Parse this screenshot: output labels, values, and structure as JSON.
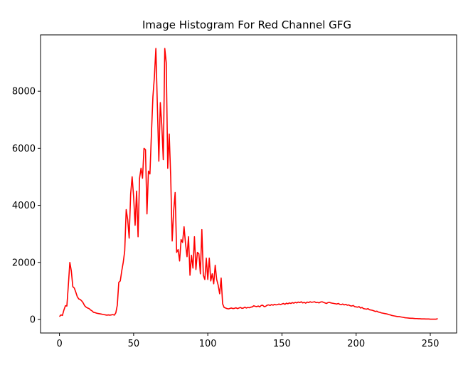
{
  "chart_data": {
    "type": "line",
    "title": "Image Histogram For Red Channel GFG",
    "xlabel": "",
    "ylabel": "",
    "xlim": [
      -12.75,
      267.75
    ],
    "ylim": [
      -475,
      9975
    ],
    "xticks": [
      0,
      50,
      100,
      150,
      200,
      250
    ],
    "yticks": [
      0,
      2000,
      4000,
      6000,
      8000
    ],
    "grid": false,
    "legend": "none",
    "series": [
      {
        "color": "#ff0000",
        "points": [
          [
            0,
            100
          ],
          [
            1,
            160
          ],
          [
            2,
            140
          ],
          [
            3,
            330
          ],
          [
            4,
            480
          ],
          [
            5,
            470
          ],
          [
            6,
            1200
          ],
          [
            7,
            2000
          ],
          [
            8,
            1700
          ],
          [
            9,
            1150
          ],
          [
            10,
            1100
          ],
          [
            11,
            960
          ],
          [
            12,
            800
          ],
          [
            13,
            720
          ],
          [
            14,
            700
          ],
          [
            15,
            650
          ],
          [
            16,
            580
          ],
          [
            17,
            480
          ],
          [
            18,
            430
          ],
          [
            19,
            400
          ],
          [
            20,
            380
          ],
          [
            21,
            330
          ],
          [
            22,
            300
          ],
          [
            23,
            250
          ],
          [
            24,
            240
          ],
          [
            25,
            220
          ],
          [
            26,
            210
          ],
          [
            27,
            200
          ],
          [
            28,
            190
          ],
          [
            29,
            180
          ],
          [
            30,
            170
          ],
          [
            31,
            160
          ],
          [
            32,
            150
          ],
          [
            33,
            160
          ],
          [
            34,
            150
          ],
          [
            35,
            160
          ],
          [
            36,
            170
          ],
          [
            37,
            150
          ],
          [
            38,
            230
          ],
          [
            39,
            500
          ],
          [
            40,
            1300
          ],
          [
            41,
            1350
          ],
          [
            42,
            1700
          ],
          [
            43,
            2000
          ],
          [
            44,
            2400
          ],
          [
            45,
            3850
          ],
          [
            46,
            3500
          ],
          [
            47,
            2850
          ],
          [
            48,
            4400
          ],
          [
            49,
            5000
          ],
          [
            50,
            4300
          ],
          [
            51,
            3300
          ],
          [
            52,
            4500
          ],
          [
            53,
            2900
          ],
          [
            54,
            4950
          ],
          [
            55,
            5300
          ],
          [
            56,
            4950
          ],
          [
            57,
            6000
          ],
          [
            58,
            5950
          ],
          [
            59,
            3700
          ],
          [
            60,
            5200
          ],
          [
            61,
            5100
          ],
          [
            62,
            6500
          ],
          [
            63,
            7800
          ],
          [
            64,
            8500
          ],
          [
            65,
            9500
          ],
          [
            66,
            7500
          ],
          [
            67,
            5550
          ],
          [
            68,
            7600
          ],
          [
            69,
            6800
          ],
          [
            70,
            5600
          ],
          [
            71,
            9500
          ],
          [
            72,
            9000
          ],
          [
            73,
            5300
          ],
          [
            74,
            6500
          ],
          [
            75,
            5000
          ],
          [
            76,
            2750
          ],
          [
            77,
            3800
          ],
          [
            78,
            4450
          ],
          [
            79,
            2350
          ],
          [
            80,
            2450
          ],
          [
            81,
            2050
          ],
          [
            82,
            2800
          ],
          [
            83,
            2700
          ],
          [
            84,
            3250
          ],
          [
            85,
            2650
          ],
          [
            86,
            2200
          ],
          [
            87,
            2900
          ],
          [
            88,
            1550
          ],
          [
            89,
            2250
          ],
          [
            90,
            1800
          ],
          [
            91,
            2900
          ],
          [
            92,
            1750
          ],
          [
            93,
            2350
          ],
          [
            94,
            2300
          ],
          [
            95,
            1600
          ],
          [
            96,
            3150
          ],
          [
            97,
            1550
          ],
          [
            98,
            1400
          ],
          [
            99,
            2150
          ],
          [
            100,
            1400
          ],
          [
            101,
            2150
          ],
          [
            102,
            1350
          ],
          [
            103,
            1600
          ],
          [
            104,
            1250
          ],
          [
            105,
            1900
          ],
          [
            106,
            1400
          ],
          [
            107,
            1200
          ],
          [
            108,
            900
          ],
          [
            109,
            1450
          ],
          [
            110,
            550
          ],
          [
            111,
            420
          ],
          [
            112,
            400
          ],
          [
            113,
            380
          ],
          [
            114,
            370
          ],
          [
            115,
            390
          ],
          [
            116,
            400
          ],
          [
            117,
            380
          ],
          [
            118,
            390
          ],
          [
            119,
            410
          ],
          [
            120,
            380
          ],
          [
            121,
            400
          ],
          [
            122,
            420
          ],
          [
            123,
            390
          ],
          [
            124,
            400
          ],
          [
            125,
            430
          ],
          [
            126,
            400
          ],
          [
            127,
            420
          ],
          [
            128,
            410
          ],
          [
            129,
            430
          ],
          [
            130,
            440
          ],
          [
            131,
            480
          ],
          [
            132,
            460
          ],
          [
            133,
            450
          ],
          [
            134,
            470
          ],
          [
            135,
            440
          ],
          [
            136,
            490
          ],
          [
            137,
            500
          ],
          [
            138,
            450
          ],
          [
            139,
            460
          ],
          [
            140,
            500
          ],
          [
            141,
            510
          ],
          [
            142,
            490
          ],
          [
            143,
            520
          ],
          [
            144,
            500
          ],
          [
            145,
            530
          ],
          [
            146,
            510
          ],
          [
            147,
            520
          ],
          [
            148,
            540
          ],
          [
            149,
            520
          ],
          [
            150,
            540
          ],
          [
            151,
            560
          ],
          [
            152,
            530
          ],
          [
            153,
            570
          ],
          [
            154,
            550
          ],
          [
            155,
            580
          ],
          [
            156,
            560
          ],
          [
            157,
            590
          ],
          [
            158,
            570
          ],
          [
            159,
            600
          ],
          [
            160,
            580
          ],
          [
            161,
            610
          ],
          [
            162,
            590
          ],
          [
            163,
            620
          ],
          [
            164,
            580
          ],
          [
            165,
            600
          ],
          [
            166,
            570
          ],
          [
            167,
            610
          ],
          [
            168,
            590
          ],
          [
            169,
            620
          ],
          [
            170,
            600
          ],
          [
            171,
            610
          ],
          [
            172,
            620
          ],
          [
            173,
            590
          ],
          [
            174,
            600
          ],
          [
            175,
            580
          ],
          [
            176,
            610
          ],
          [
            177,
            620
          ],
          [
            178,
            600
          ],
          [
            179,
            580
          ],
          [
            180,
            560
          ],
          [
            181,
            590
          ],
          [
            182,
            600
          ],
          [
            183,
            580
          ],
          [
            184,
            570
          ],
          [
            185,
            560
          ],
          [
            186,
            550
          ],
          [
            187,
            540
          ],
          [
            188,
            560
          ],
          [
            189,
            530
          ],
          [
            190,
            520
          ],
          [
            191,
            540
          ],
          [
            192,
            510
          ],
          [
            193,
            530
          ],
          [
            194,
            500
          ],
          [
            195,
            510
          ],
          [
            196,
            480
          ],
          [
            197,
            470
          ],
          [
            198,
            490
          ],
          [
            199,
            450
          ],
          [
            200,
            440
          ],
          [
            201,
            430
          ],
          [
            202,
            450
          ],
          [
            203,
            400
          ],
          [
            204,
            420
          ],
          [
            205,
            380
          ],
          [
            206,
            370
          ],
          [
            207,
            360
          ],
          [
            208,
            380
          ],
          [
            209,
            340
          ],
          [
            210,
            330
          ],
          [
            211,
            320
          ],
          [
            212,
            300
          ],
          [
            213,
            280
          ],
          [
            214,
            290
          ],
          [
            215,
            260
          ],
          [
            216,
            250
          ],
          [
            217,
            230
          ],
          [
            218,
            220
          ],
          [
            219,
            210
          ],
          [
            220,
            200
          ],
          [
            221,
            190
          ],
          [
            222,
            170
          ],
          [
            223,
            160
          ],
          [
            224,
            140
          ],
          [
            225,
            130
          ],
          [
            226,
            120
          ],
          [
            227,
            110
          ],
          [
            228,
            100
          ],
          [
            229,
            100
          ],
          [
            230,
            90
          ],
          [
            231,
            80
          ],
          [
            232,
            70
          ],
          [
            233,
            60
          ],
          [
            234,
            55
          ],
          [
            235,
            50
          ],
          [
            236,
            45
          ],
          [
            237,
            40
          ],
          [
            238,
            40
          ],
          [
            239,
            35
          ],
          [
            240,
            30
          ],
          [
            241,
            30
          ],
          [
            242,
            25
          ],
          [
            243,
            25
          ],
          [
            244,
            20
          ],
          [
            245,
            20
          ],
          [
            246,
            20
          ],
          [
            247,
            15
          ],
          [
            248,
            15
          ],
          [
            249,
            15
          ],
          [
            250,
            10
          ],
          [
            251,
            10
          ],
          [
            252,
            10
          ],
          [
            253,
            10
          ],
          [
            254,
            10
          ],
          [
            255,
            30
          ]
        ]
      }
    ]
  }
}
